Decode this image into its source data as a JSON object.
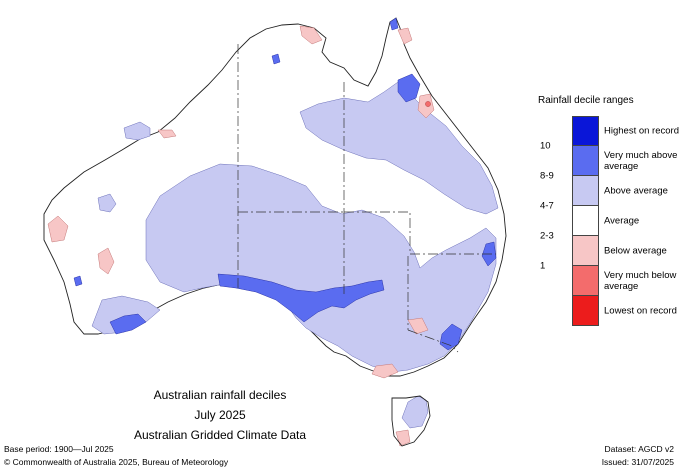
{
  "legend": {
    "title": "Rainfall decile ranges",
    "items": [
      {
        "label": "Highest on record",
        "color": "#0a16d8"
      },
      {
        "label": "Very much above average",
        "color": "#5a6cf0"
      },
      {
        "label": "Above average",
        "color": "#c7c9f2"
      },
      {
        "label": "Average",
        "color": "#ffffff"
      },
      {
        "label": "Below average",
        "color": "#f7c6c6"
      },
      {
        "label": "Very much below average",
        "color": "#f36c6c"
      },
      {
        "label": "Lowest on record",
        "color": "#ec1c1c"
      }
    ],
    "ranges": [
      "10",
      "8-9",
      "4-7",
      "2-3",
      "1"
    ]
  },
  "caption": {
    "line1": "Australian rainfall deciles",
    "line2": "July 2025",
    "line3": "Australian Gridded Climate Data"
  },
  "footer": {
    "base_period": "Base period: 1900—Jul 2025",
    "copyright": "© Commonwealth of Australia 2025, Bureau of Meteorology",
    "dataset": "Dataset: AGCD v2",
    "issued": "Issued: 31/07/2025"
  }
}
